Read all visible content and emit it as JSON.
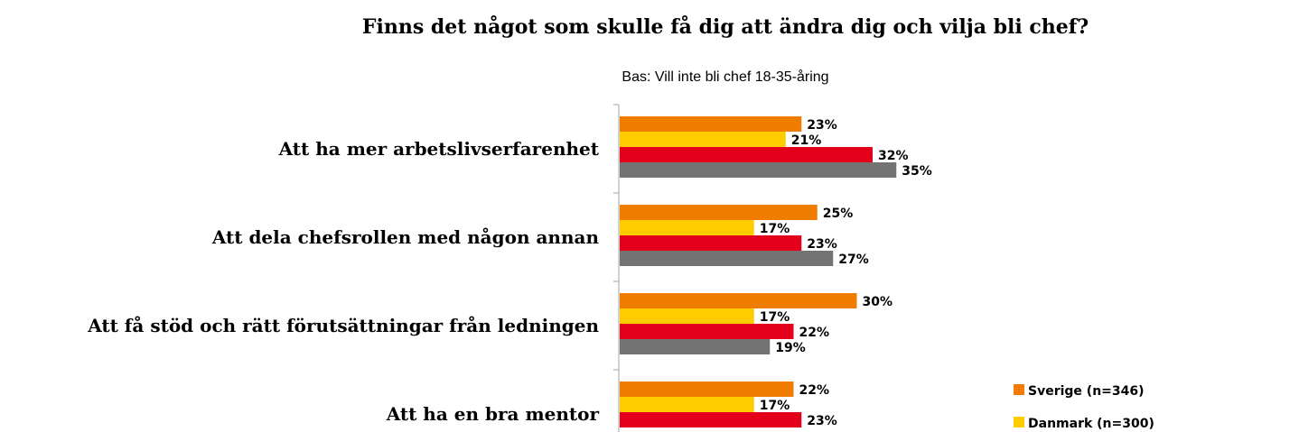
{
  "chart_data": {
    "type": "bar",
    "orientation": "horizontal",
    "title": "Finns det något som skulle få dig att ändra dig och vilja bli chef?",
    "subtitle": "Bas: Vill inte bli chef 18-35-åring",
    "categories": [
      "Att ha mer arbetslivserfarenhet",
      "Att dela chefsrollen med någon annan",
      "Att få stöd och rätt förutsättningar från ledningen",
      "Att ha en bra mentor"
    ],
    "series": [
      {
        "name": "Sverige (n=346)",
        "color": "#f07d00",
        "values": [
          23,
          25,
          30,
          22
        ]
      },
      {
        "name": "Danmark (n=300)",
        "color": "#ffcc00",
        "values": [
          21,
          17,
          17,
          17
        ]
      },
      {
        "name": "",
        "color": "#e2001a",
        "values": [
          32,
          23,
          22,
          23
        ]
      },
      {
        "name": "",
        "color": "#737373",
        "values": [
          35,
          27,
          19,
          null
        ]
      }
    ],
    "value_suffix": "%",
    "legend_position": "right",
    "grid": false
  }
}
